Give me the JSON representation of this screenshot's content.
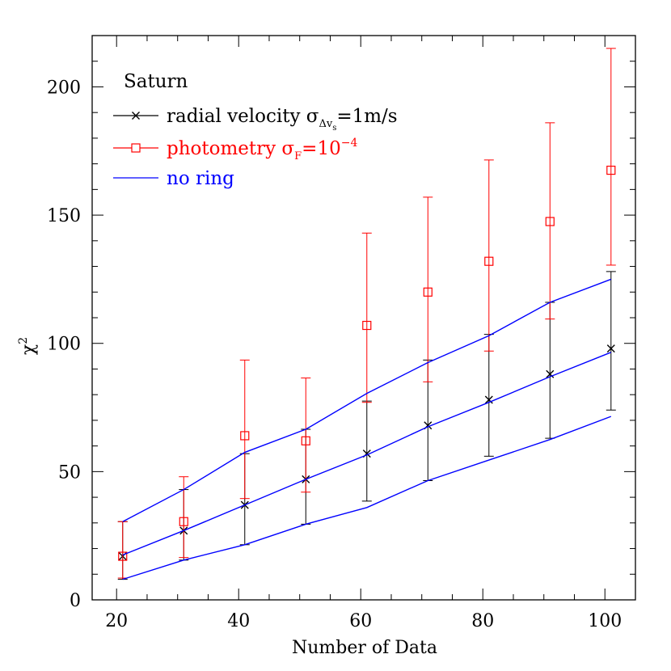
{
  "chart_data": {
    "type": "line",
    "title": "Saturn",
    "xlabel": "Number of Data",
    "ylabel": "χ",
    "ylabel_sup": "2",
    "xlim": [
      16,
      105
    ],
    "ylim": [
      0,
      220
    ],
    "xticks": [
      20,
      40,
      60,
      80,
      100
    ],
    "xtick_labels": [
      "20",
      "40",
      "60",
      "80",
      "100"
    ],
    "yticks": [
      0,
      50,
      100,
      150,
      200
    ],
    "ytick_labels": [
      "0",
      "50",
      "100",
      "150",
      "200"
    ],
    "grid": false,
    "legend_position": "top-left",
    "series": [
      {
        "name": "radial velocity σ",
        "name_sub": "Δv",
        "name_subsub": "s",
        "name_suffix": "=1m/s",
        "color": "#000000",
        "marker": "cross",
        "x": [
          21,
          31,
          41,
          51,
          61,
          71,
          81,
          91,
          101
        ],
        "y": [
          17,
          27,
          37,
          47,
          57,
          68,
          78,
          88,
          98
        ],
        "err_low": [
          8,
          15.5,
          21.5,
          29.5,
          38.5,
          46.5,
          56,
          63,
          74
        ],
        "err_high": [
          30.5,
          43,
          57,
          66.5,
          77.5,
          93.5,
          103.5,
          116,
          128
        ]
      },
      {
        "name": "photometry σ",
        "name_sub": "F",
        "name_suffix": "=10",
        "name_sup": "−4",
        "color": "#ff0000",
        "marker": "square",
        "x": [
          21,
          31,
          41,
          51,
          61,
          71,
          81,
          91,
          101
        ],
        "y": [
          17,
          30.5,
          64,
          62,
          107,
          120,
          132,
          147.5,
          167.5
        ],
        "err_low": [
          8.5,
          16.5,
          39.5,
          42,
          77,
          85,
          97,
          109.5,
          130.5
        ],
        "err_high": [
          30.5,
          48,
          93.5,
          86.5,
          143,
          157,
          171.5,
          186,
          215
        ]
      },
      {
        "name": "no ring",
        "color": "#0000ff",
        "marker": "none",
        "lines": [
          {
            "x": [
              21,
              31,
              41,
              51,
              61,
              71,
              81,
              91,
              101
            ],
            "y": [
              8,
              15.5,
              21.5,
              29.5,
              36,
              46.5,
              54.5,
              62.5,
              71.5
            ]
          },
          {
            "x": [
              21,
              31,
              41,
              51,
              61,
              71,
              81,
              91,
              101
            ],
            "y": [
              17.5,
              27,
              37,
              47,
              56.5,
              67.5,
              77,
              87,
              96.5
            ]
          },
          {
            "x": [
              21,
              31,
              41,
              51,
              61,
              71,
              81,
              91,
              101
            ],
            "y": [
              30.5,
              43,
              57.5,
              66.5,
              80.5,
              92.5,
              103,
              116,
              125
            ]
          }
        ]
      }
    ]
  }
}
